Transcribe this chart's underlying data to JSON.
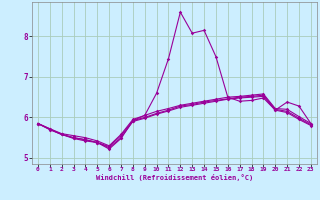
{
  "xlabel": "Windchill (Refroidissement éolien,°C)",
  "bg_color": "#cceeff",
  "line_color": "#990099",
  "grid_color": "#aaccbb",
  "xlim": [
    -0.5,
    23.5
  ],
  "ylim": [
    4.85,
    8.85
  ],
  "yticks": [
    5,
    6,
    7,
    8
  ],
  "xticks": [
    0,
    1,
    2,
    3,
    4,
    5,
    6,
    7,
    8,
    9,
    10,
    11,
    12,
    13,
    14,
    15,
    16,
    17,
    18,
    19,
    20,
    21,
    22,
    23
  ],
  "lines": [
    [
      5.85,
      5.72,
      5.6,
      5.55,
      5.5,
      5.42,
      5.3,
      5.58,
      5.95,
      6.05,
      6.15,
      6.22,
      6.3,
      6.35,
      6.4,
      6.45,
      6.5,
      6.52,
      6.55,
      6.58,
      6.22,
      6.2,
      6.02,
      5.85
    ],
    [
      5.85,
      5.7,
      5.58,
      5.5,
      5.45,
      5.38,
      5.28,
      5.55,
      5.92,
      6.0,
      6.1,
      6.18,
      6.28,
      6.32,
      6.38,
      6.42,
      6.46,
      6.5,
      6.52,
      6.55,
      6.2,
      6.15,
      5.98,
      5.82
    ],
    [
      5.85,
      5.7,
      5.58,
      5.5,
      5.45,
      5.38,
      5.25,
      5.5,
      5.9,
      5.98,
      6.08,
      6.16,
      6.25,
      6.3,
      6.35,
      6.4,
      6.45,
      6.48,
      6.5,
      6.52,
      6.18,
      6.12,
      5.95,
      5.8
    ],
    [
      5.85,
      5.72,
      5.58,
      5.48,
      5.42,
      5.38,
      5.22,
      5.48,
      5.92,
      6.05,
      6.6,
      7.45,
      8.6,
      8.08,
      8.15,
      7.5,
      6.5,
      6.4,
      6.42,
      6.48,
      6.18,
      6.38,
      6.28,
      5.85
    ]
  ]
}
